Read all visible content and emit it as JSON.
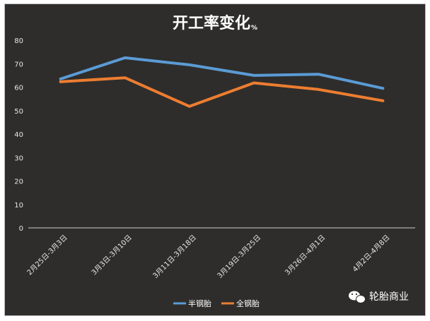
{
  "chart_data": {
    "type": "line",
    "title": "开工率变化",
    "title_suffix": "%",
    "categories": [
      "2月25日-3月3日",
      "3月3日-3月10日",
      "3月11日-3月18日",
      "3月19日-3月25日",
      "3月26日-4月1日",
      "4月2日-4月8日"
    ],
    "series": [
      {
        "name": "半钢胎",
        "color": "#5b9bd5",
        "values": [
          63.5,
          72.5,
          69.5,
          65,
          65.5,
          59.5
        ]
      },
      {
        "name": "全钢胎",
        "color": "#ed7d31",
        "values": [
          62.3,
          64,
          51.8,
          61.8,
          59,
          54.2
        ]
      }
    ],
    "ylim": [
      0,
      80
    ],
    "yticks": [
      0,
      10,
      20,
      30,
      40,
      50,
      60,
      70,
      80
    ],
    "grid": false,
    "legend_position": "bottom"
  },
  "colors": {
    "background": "#2e2d2b",
    "text": "#ffffff"
  },
  "watermark": {
    "icon": "wechat-icon",
    "text": "轮胎商业"
  }
}
